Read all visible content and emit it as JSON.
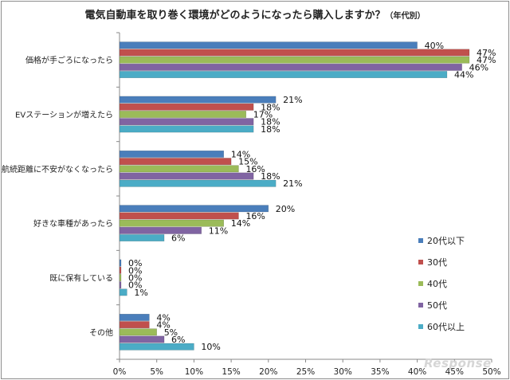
{
  "chart_data": {
    "type": "bar",
    "orientation": "horizontal",
    "title": "電気自動車を取り巻く環境がどのようになったら購入しますか？",
    "subtitle": "（年代別）",
    "categories": [
      "価格が手ごろになったら",
      "EVステーションが増えたら",
      "航続距離に不安がなくなったら",
      "好きな車種があったら",
      "既に保有している",
      "その他"
    ],
    "series": [
      {
        "name": "20代以下",
        "color": "#4a7ebb",
        "values": [
          40,
          21,
          14,
          20,
          0,
          4
        ]
      },
      {
        "name": "30代",
        "color": "#c0504d",
        "values": [
          47,
          18,
          15,
          16,
          0,
          4
        ]
      },
      {
        "name": "40代",
        "color": "#9bbb59",
        "values": [
          47,
          17,
          16,
          14,
          0,
          5
        ]
      },
      {
        "name": "50代",
        "color": "#8064a2",
        "values": [
          46,
          18,
          18,
          11,
          0,
          6
        ]
      },
      {
        "name": "60代以上",
        "color": "#4bacc6",
        "values": [
          44,
          18,
          21,
          6,
          1,
          10
        ]
      }
    ],
    "xlim": [
      0,
      50
    ],
    "xticks": [
      "0%",
      "5%",
      "10%",
      "15%",
      "20%",
      "25%",
      "30%",
      "35%",
      "40%",
      "45%",
      "50%"
    ],
    "value_suffix": "%",
    "xlabel": "",
    "ylabel": "",
    "legend_position": "right"
  },
  "watermark": "Response"
}
